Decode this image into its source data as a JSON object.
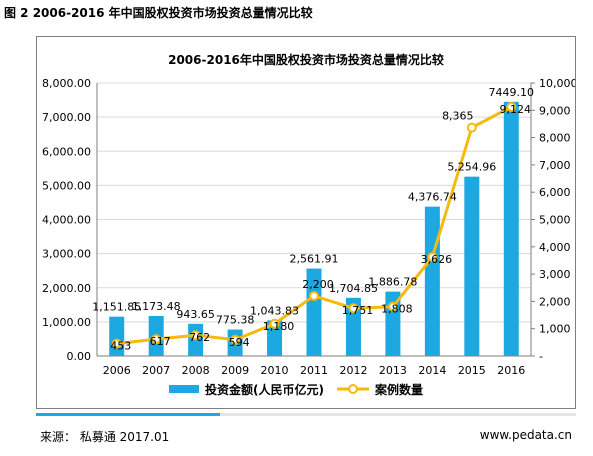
{
  "figure_caption": "图 2 2006-2016 年中国股权投资市场投资总量情况比较",
  "footer": {
    "source": "来源：  私募通  2017.01",
    "website": "www.pedata.cn"
  },
  "progress_fraction": 0.34,
  "colors": {
    "bar": "#1ca9e1",
    "line": "#f5b90f",
    "point_fill": "#ffffff",
    "grid": "#d9d9d9",
    "axis": "#7f7f7f"
  },
  "chart_data": {
    "type": "bar",
    "title": "2006-2016年中国股权投资市场投资总量情况比较",
    "categories": [
      "2006",
      "2007",
      "2008",
      "2009",
      "2010",
      "2011",
      "2012",
      "2013",
      "2014",
      "2015",
      "2016"
    ],
    "series": [
      {
        "name": "投资金额(人民币亿元)",
        "type": "bar",
        "axis": "left",
        "values": [
          1151.85,
          1173.48,
          943.65,
          775.38,
          1043.83,
          2561.91,
          1704.85,
          1886.78,
          4376.74,
          5254.96,
          7449.1
        ],
        "labels": [
          "1,151.85",
          "1,173.48",
          "943.65",
          "775.38",
          "1,043.83",
          "2,561.91",
          "1,704.85",
          "1,886.78",
          "4,376.74",
          "5,254.96",
          "7449.10"
        ]
      },
      {
        "name": "案例数量",
        "type": "line",
        "axis": "right",
        "values": [
          453,
          617,
          762,
          594,
          1180,
          2200,
          1751,
          1808,
          3626,
          8365,
          9124
        ],
        "labels": [
          "453",
          "617",
          "762",
          "594",
          "1,180",
          "2,200",
          "1,751",
          "1,808",
          "3,626",
          "8,365",
          "9,124"
        ]
      }
    ],
    "y_left": {
      "min": 0,
      "max": 8000,
      "ticks": [
        "0.00",
        "1,000.00",
        "2,000.00",
        "3,000.00",
        "4,000.00",
        "5,000.00",
        "6,000.00",
        "7,000.00",
        "8,000.00"
      ]
    },
    "y_right": {
      "min": 0,
      "max": 10000,
      "ticks": [
        "-",
        "1,000",
        "2,000",
        "3,000",
        "4,000",
        "5,000",
        "6,000",
        "7,000",
        "8,000",
        "9,000",
        "10,000"
      ]
    },
    "grid": true,
    "legend_position": "bottom"
  }
}
